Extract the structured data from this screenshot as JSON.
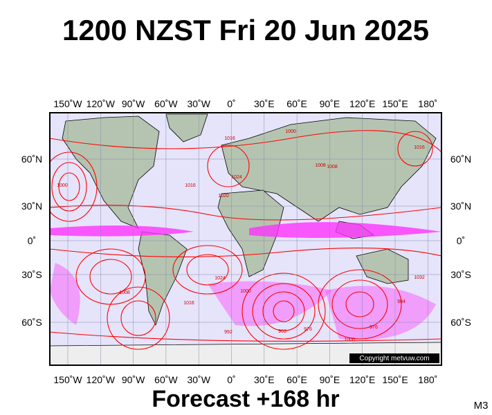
{
  "header": {
    "title": "1200 NZST Fri 20 Jun 2025"
  },
  "map": {
    "lon_labels": [
      "150˚W",
      "120˚W",
      "90˚W",
      "60˚W",
      "30˚W",
      "0˚",
      "30˚E",
      "60˚E",
      "90˚E",
      "120˚E",
      "150˚E",
      "180˚"
    ],
    "lat_labels": [
      "60˚N",
      "30˚N",
      "0˚",
      "30˚S",
      "60˚S"
    ],
    "isobar_labels": [
      "1000",
      "1016",
      "1008",
      "1024",
      "1016",
      "1020",
      "1008",
      "1000",
      "992",
      "1016",
      "1024",
      "1000",
      "976",
      "968",
      "1000",
      "984",
      "976",
      "1032",
      "1008",
      "1016"
    ],
    "copyright": "Copyright metvuw.com"
  },
  "footer": {
    "forecast": "Forecast +168 hr",
    "code": "M3"
  }
}
